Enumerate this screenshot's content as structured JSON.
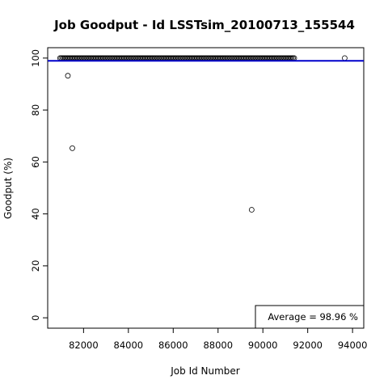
{
  "chart_data": {
    "type": "scatter",
    "title": "Job Goodput - Id  LSSTsim_20100713_155544",
    "xlabel": "Job Id Number",
    "ylabel": "Goodput (%)",
    "xlim": [
      80400,
      94500
    ],
    "ylim": [
      -4,
      104
    ],
    "xticks": [
      82000,
      84000,
      86000,
      88000,
      90000,
      92000,
      94000
    ],
    "yticks": [
      0,
      20,
      40,
      60,
      80,
      100
    ],
    "grid": false,
    "marker": "open-circle",
    "average_line": {
      "y": 98.96,
      "color": "#0000cc"
    },
    "legend": {
      "position": "bottom-right",
      "text": "Average =  98.96 %"
    },
    "series": [
      {
        "values_range": {
          "x_start": 80950,
          "x_end": 91450,
          "y": 100,
          "note_hidden": ""
        },
        "points": [
          {
            "x": 81300,
            "y": 93.2
          },
          {
            "x": 81500,
            "y": 65.3
          },
          {
            "x": 89500,
            "y": 41.6
          },
          {
            "x": 93650,
            "y": 100
          }
        ]
      }
    ]
  }
}
